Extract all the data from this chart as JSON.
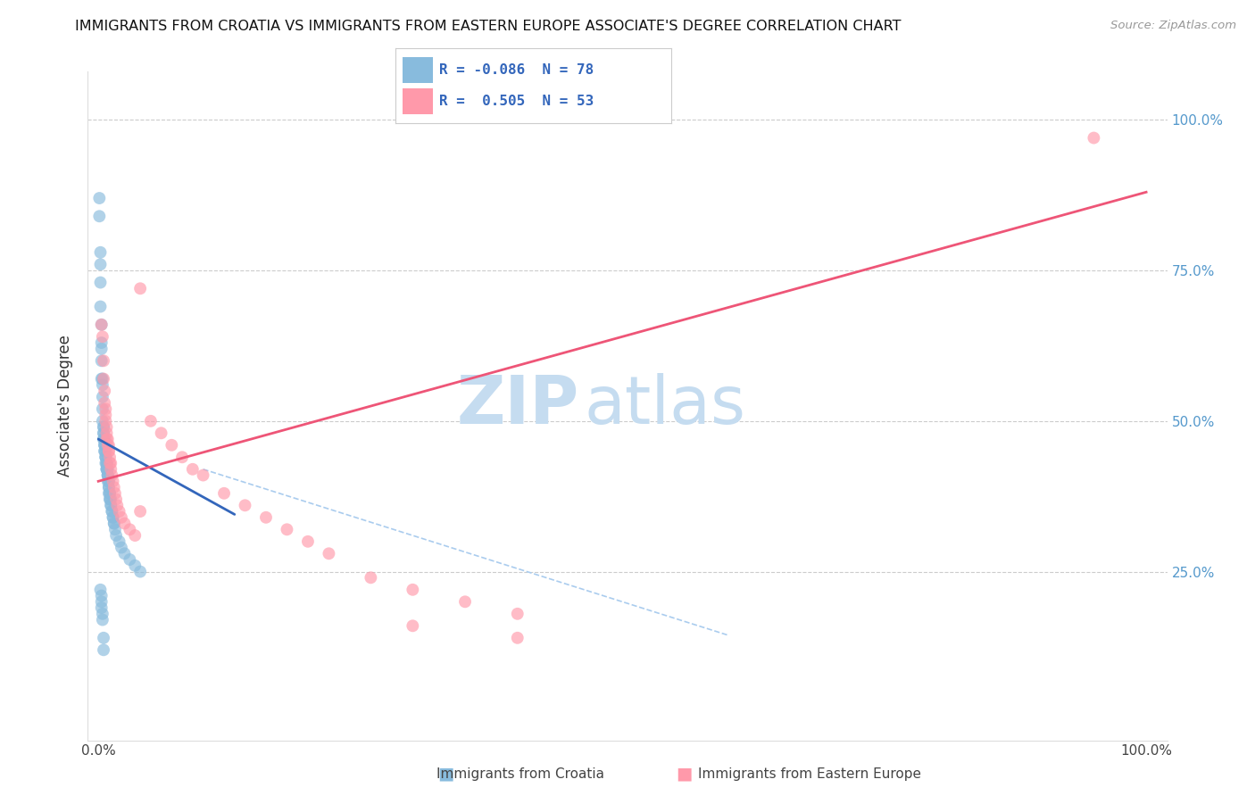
{
  "title": "IMMIGRANTS FROM CROATIA VS IMMIGRANTS FROM EASTERN EUROPE ASSOCIATE'S DEGREE CORRELATION CHART",
  "source": "Source: ZipAtlas.com",
  "ylabel": "Associate's Degree",
  "legend_label1": "Immigrants from Croatia",
  "legend_label2": "Immigrants from Eastern Europe",
  "R1": -0.086,
  "N1": 78,
  "R2": 0.505,
  "N2": 53,
  "color_blue": "#88BBDD",
  "color_pink": "#FF99AA",
  "color_blue_line": "#3366BB",
  "color_pink_line": "#EE5577",
  "color_dashed": "#AACCEE",
  "blue_line_x0": 0.0,
  "blue_line_x1": 0.13,
  "blue_line_y0": 0.47,
  "blue_line_y1": 0.345,
  "pink_line_x0": 0.0,
  "pink_line_x1": 1.0,
  "pink_line_y0": 0.4,
  "pink_line_y1": 0.88,
  "dashed_line_x0": 0.1,
  "dashed_line_x1": 0.6,
  "dashed_line_y0": 0.42,
  "dashed_line_y1": 0.145,
  "grid_lines": [
    0.25,
    0.5,
    0.75,
    1.0
  ],
  "xlim": [
    -0.01,
    1.02
  ],
  "ylim": [
    -0.03,
    1.08
  ],
  "watermark_zip": "ZIP",
  "watermark_atlas": "atlas",
  "watermark_color_zip": "#C5DCF0",
  "watermark_color_atlas": "#C5DCF0",
  "blue_x": [
    0.001,
    0.001,
    0.002,
    0.002,
    0.002,
    0.002,
    0.003,
    0.003,
    0.003,
    0.003,
    0.003,
    0.004,
    0.004,
    0.004,
    0.004,
    0.004,
    0.005,
    0.005,
    0.005,
    0.005,
    0.005,
    0.005,
    0.006,
    0.006,
    0.006,
    0.006,
    0.006,
    0.006,
    0.007,
    0.007,
    0.007,
    0.007,
    0.007,
    0.008,
    0.008,
    0.008,
    0.008,
    0.008,
    0.008,
    0.009,
    0.009,
    0.009,
    0.009,
    0.009,
    0.01,
    0.01,
    0.01,
    0.01,
    0.01,
    0.011,
    0.011,
    0.011,
    0.011,
    0.012,
    0.012,
    0.012,
    0.013,
    0.013,
    0.014,
    0.014,
    0.015,
    0.015,
    0.016,
    0.017,
    0.02,
    0.022,
    0.025,
    0.03,
    0.035,
    0.04,
    0.002,
    0.003,
    0.003,
    0.003,
    0.004,
    0.004,
    0.005,
    0.005
  ],
  "blue_y": [
    0.87,
    0.84,
    0.78,
    0.76,
    0.73,
    0.69,
    0.66,
    0.63,
    0.62,
    0.6,
    0.57,
    0.57,
    0.56,
    0.54,
    0.52,
    0.5,
    0.49,
    0.49,
    0.48,
    0.48,
    0.47,
    0.47,
    0.47,
    0.46,
    0.46,
    0.46,
    0.45,
    0.45,
    0.45,
    0.44,
    0.44,
    0.44,
    0.43,
    0.43,
    0.43,
    0.43,
    0.42,
    0.42,
    0.42,
    0.42,
    0.41,
    0.41,
    0.41,
    0.4,
    0.4,
    0.4,
    0.39,
    0.39,
    0.38,
    0.38,
    0.38,
    0.37,
    0.37,
    0.37,
    0.36,
    0.36,
    0.35,
    0.35,
    0.34,
    0.34,
    0.33,
    0.33,
    0.32,
    0.31,
    0.3,
    0.29,
    0.28,
    0.27,
    0.26,
    0.25,
    0.22,
    0.21,
    0.2,
    0.19,
    0.18,
    0.17,
    0.14,
    0.12
  ],
  "pink_x": [
    0.003,
    0.004,
    0.005,
    0.005,
    0.006,
    0.006,
    0.007,
    0.007,
    0.007,
    0.008,
    0.008,
    0.008,
    0.009,
    0.009,
    0.01,
    0.01,
    0.01,
    0.011,
    0.011,
    0.012,
    0.012,
    0.013,
    0.014,
    0.015,
    0.016,
    0.017,
    0.018,
    0.02,
    0.022,
    0.025,
    0.03,
    0.035,
    0.04,
    0.05,
    0.06,
    0.07,
    0.08,
    0.09,
    0.1,
    0.12,
    0.14,
    0.16,
    0.18,
    0.2,
    0.22,
    0.26,
    0.3,
    0.35,
    0.4,
    0.04,
    0.3,
    0.4,
    0.95
  ],
  "pink_y": [
    0.66,
    0.64,
    0.6,
    0.57,
    0.55,
    0.53,
    0.52,
    0.51,
    0.5,
    0.49,
    0.48,
    0.47,
    0.47,
    0.46,
    0.46,
    0.45,
    0.45,
    0.44,
    0.43,
    0.43,
    0.42,
    0.41,
    0.4,
    0.39,
    0.38,
    0.37,
    0.36,
    0.35,
    0.34,
    0.33,
    0.32,
    0.31,
    0.72,
    0.5,
    0.48,
    0.46,
    0.44,
    0.42,
    0.41,
    0.38,
    0.36,
    0.34,
    0.32,
    0.3,
    0.28,
    0.24,
    0.22,
    0.2,
    0.18,
    0.35,
    0.16,
    0.14,
    0.97
  ]
}
